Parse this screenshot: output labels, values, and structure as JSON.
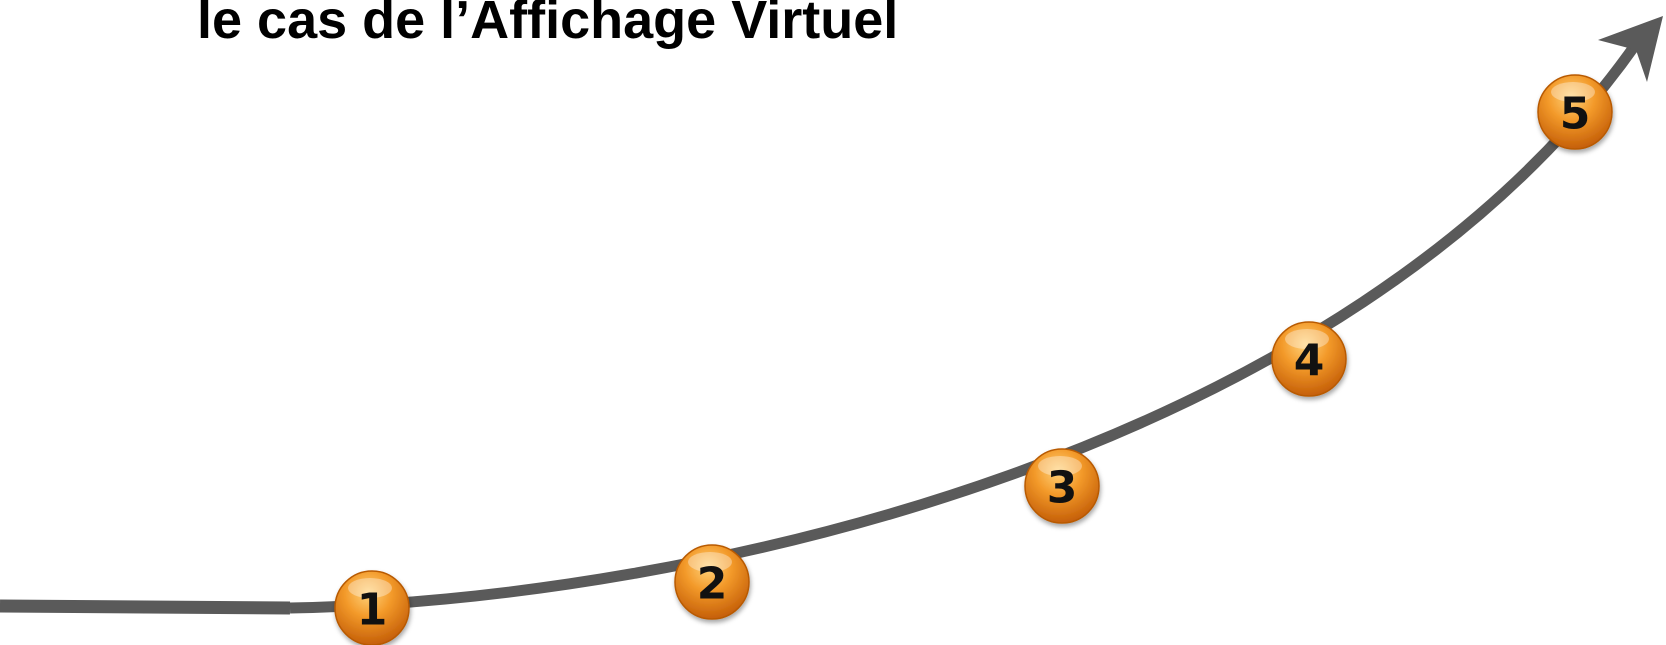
{
  "title": "le cas de l’Affichage Virtuel",
  "steps": [
    {
      "label": "1"
    },
    {
      "label": "2"
    },
    {
      "label": "3"
    },
    {
      "label": "4"
    },
    {
      "label": "5"
    }
  ]
}
